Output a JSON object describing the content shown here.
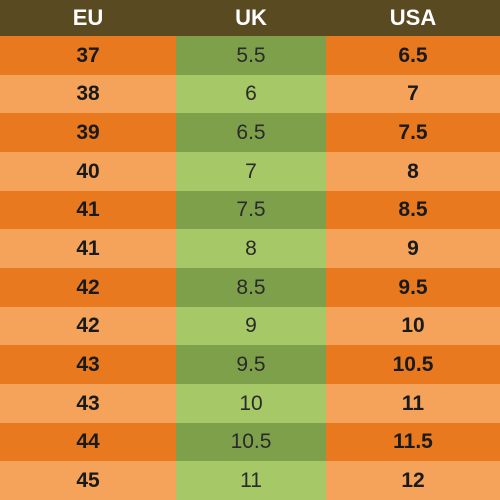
{
  "headers": {
    "eu": "EU",
    "uk": "UK",
    "usa": "USA"
  },
  "rows": [
    {
      "eu": "37",
      "uk": "5.5",
      "usa": "6.5"
    },
    {
      "eu": "38",
      "uk": "6",
      "usa": "7"
    },
    {
      "eu": "39",
      "uk": "6.5",
      "usa": "7.5"
    },
    {
      "eu": "40",
      "uk": "7",
      "usa": "8"
    },
    {
      "eu": "41",
      "uk": "7.5",
      "usa": "8.5"
    },
    {
      "eu": "41",
      "uk": "8",
      "usa": "9"
    },
    {
      "eu": "42",
      "uk": "8.5",
      "usa": "9.5"
    },
    {
      "eu": "42",
      "uk": "9",
      "usa": "10"
    },
    {
      "eu": "43",
      "uk": "9.5",
      "usa": "10.5"
    },
    {
      "eu": "43",
      "uk": "10",
      "usa": "11"
    },
    {
      "eu": "44",
      "uk": "10.5",
      "usa": "11.5"
    },
    {
      "eu": "45",
      "uk": "11",
      "usa": "12"
    }
  ],
  "colors": {
    "header_bg": "#5a4a22",
    "orange_dark": "#e8791f",
    "orange_light": "#f5a35a",
    "green_dark": "#7ea04a",
    "green_light": "#a7c866"
  }
}
